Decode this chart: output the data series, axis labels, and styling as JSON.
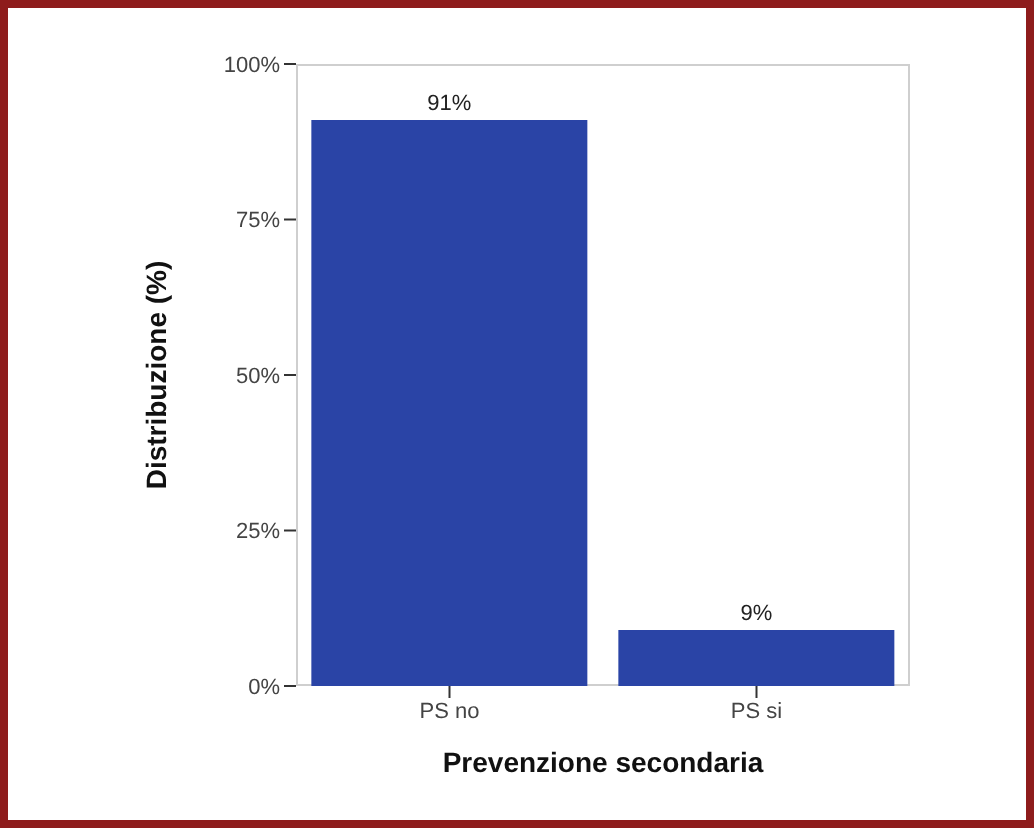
{
  "chart_data": {
    "type": "bar",
    "xlabel": "Prevenzione secondaria",
    "ylabel": "Distribuzione (%)",
    "categories": [
      "PS no",
      "PS si"
    ],
    "values": [
      91,
      9
    ],
    "color": "#2a44a6",
    "value_labels": [
      "91%",
      "9%"
    ],
    "ylim": [
      0,
      100
    ],
    "yticks": [
      {
        "value": 0,
        "label": "0%"
      },
      {
        "value": 25,
        "label": "25%"
      },
      {
        "value": 50,
        "label": "50%"
      },
      {
        "value": 75,
        "label": "75%"
      },
      {
        "value": 100,
        "label": "100%"
      }
    ],
    "grid": false
  }
}
